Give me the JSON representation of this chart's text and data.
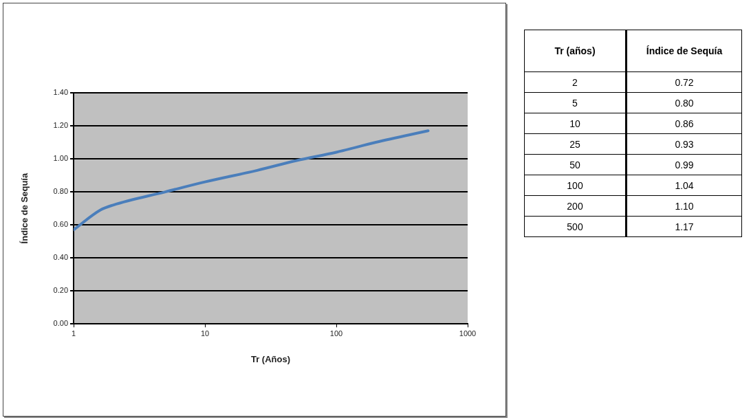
{
  "chart_data": [
    {
      "type": "line",
      "xlabel": "Tr (Años)",
      "ylabel": "Índice de Sequía",
      "series": [
        {
          "color": "#4a7ebb",
          "x": [
            1,
            1.6,
            2,
            5,
            10,
            25,
            50,
            100,
            200,
            500
          ],
          "values": [
            0.57,
            0.69,
            0.72,
            0.8,
            0.86,
            0.93,
            0.99,
            1.04,
            1.1,
            1.17
          ]
        }
      ],
      "log": "x",
      "xlim": [
        1,
        1000
      ],
      "xticks": [
        1,
        10,
        100,
        1000
      ],
      "ylim": [
        0,
        1.4
      ],
      "yticks": [
        {
          "value": 0,
          "label": "0.00"
        },
        {
          "value": 0.2,
          "label": "0.20"
        },
        {
          "value": 0.4,
          "label": "0.40"
        },
        {
          "value": 0.6,
          "label": "0.60"
        },
        {
          "value": 0.8,
          "label": "0.80"
        },
        {
          "value": 1,
          "label": "1.00"
        },
        {
          "value": 1.2,
          "label": "1.20"
        },
        {
          "value": 1.4,
          "label": "1.40"
        }
      ],
      "grid": "y",
      "marker": "none",
      "line_style": "solid",
      "legend": false
    },
    {
      "type": "other",
      "annotations": [
        "Tr (años)",
        "Índice de Sequía",
        "2",
        "0.72",
        "5",
        "0.80",
        "10",
        "0.86",
        "25",
        "0.93",
        "50",
        "0.99",
        "100",
        "1.04",
        "200",
        "1.10",
        "500",
        "1.17"
      ]
    }
  ]
}
